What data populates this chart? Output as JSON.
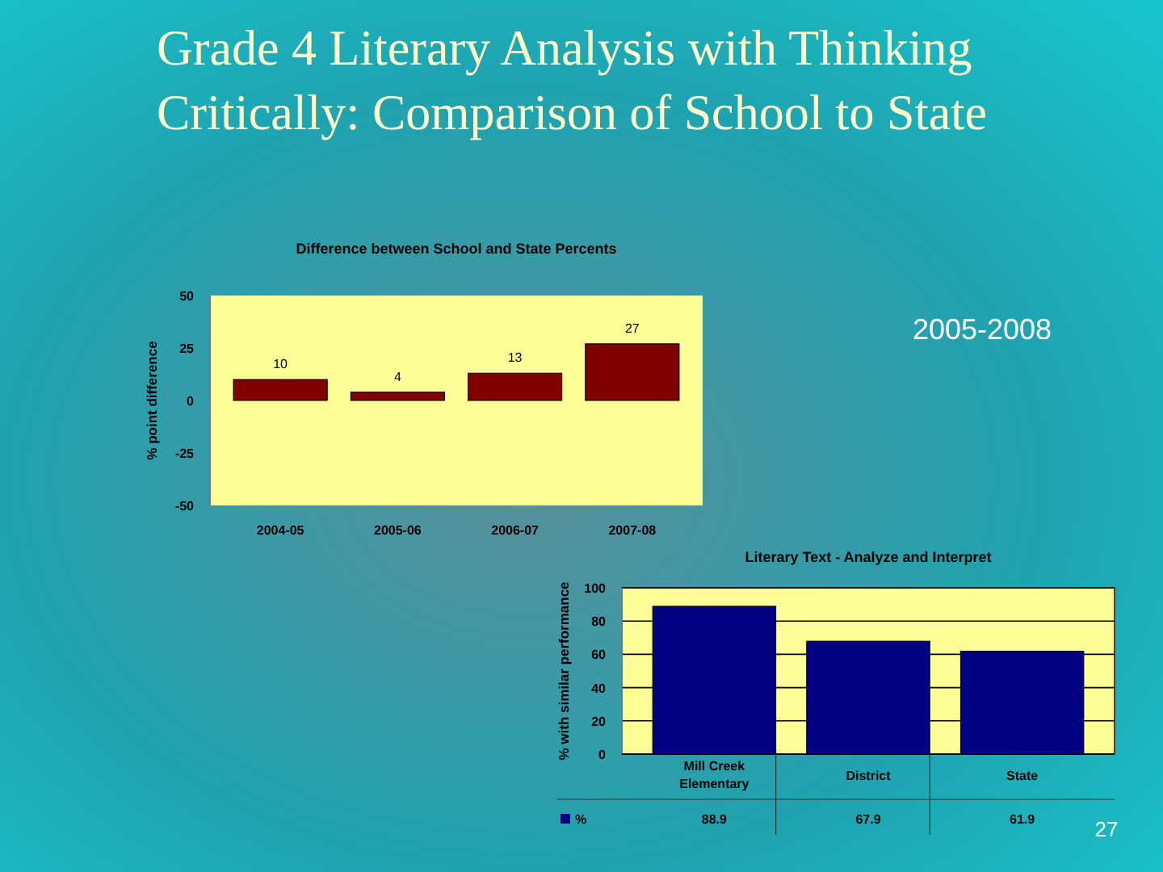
{
  "chart_data": [
    {
      "type": "other",
      "title": "Grade 4 Literary Analysis with Thinking Critically: Comparison of School to State",
      "annotations": [
        "2005-2008",
        "27"
      ]
    },
    {
      "type": "bar",
      "title": "Difference between School and State Percents",
      "ylabel": "% point difference",
      "categories": [
        "2004-05",
        "2005-06",
        "2006-07",
        "2007-08"
      ],
      "series": [
        {
          "color": "#800000",
          "values": [
            10,
            4,
            13,
            27
          ]
        }
      ],
      "ylim": [
        -50,
        50
      ],
      "yticks": [
        -50,
        -25,
        0,
        25,
        50
      ],
      "data_labels": true,
      "grid": false
    },
    {
      "type": "bar",
      "title": "Literary Text - Analyze and Interpret",
      "ylabel": "% with similar performance",
      "categories": [
        "Mill Creek Elementary",
        "District",
        "State"
      ],
      "series": [
        {
          "name": "%",
          "color": "#000080",
          "values": [
            88.9,
            67.9,
            61.9
          ]
        }
      ],
      "ylim": [
        0,
        100
      ],
      "yticks": [
        0,
        20,
        40,
        60,
        80,
        100
      ],
      "data_labels": true,
      "grid": "y",
      "legend": "bottom left"
    }
  ]
}
